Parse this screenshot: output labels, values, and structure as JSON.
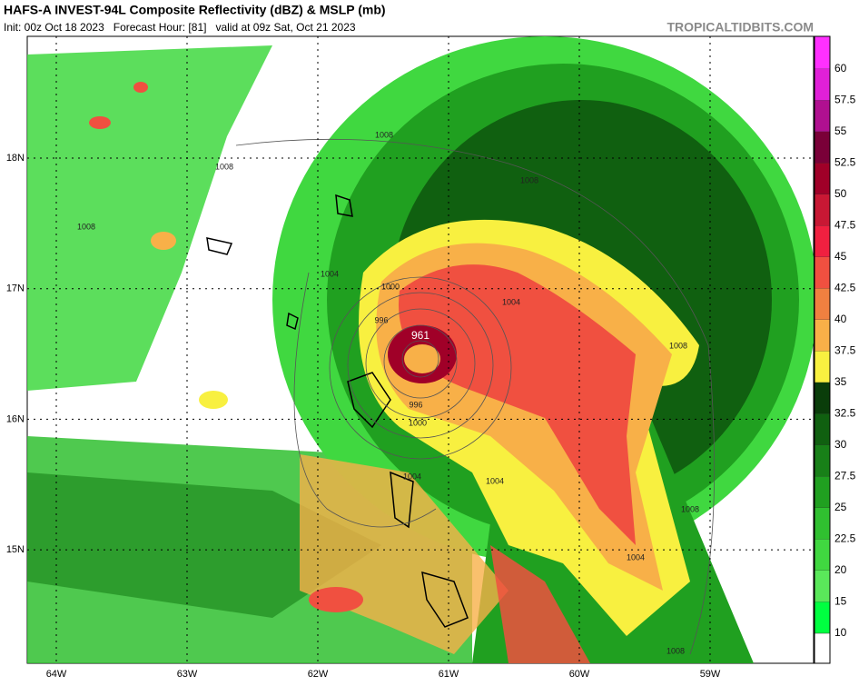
{
  "header": {
    "title": "HAFS-A INVEST-94L Composite Reflectivity (dBZ) & MSLP (mb)",
    "subtitle": "Init: 00z Oct 18 2023   Forecast Hour: [81]   valid at 09z Sat, Oct 21 2023",
    "source": "TROPICALTIDBITS.COM"
  },
  "map": {
    "lat_labels": [
      "18N",
      "17N",
      "16N",
      "15N"
    ],
    "lon_labels": [
      "64W",
      "63W",
      "62W",
      "61W",
      "60W",
      "59W"
    ],
    "isobar_labels": [
      "1008",
      "1008",
      "1008",
      "1008",
      "1008",
      "1008",
      "1008",
      "1004",
      "1004",
      "1004",
      "1004",
      "1004",
      "1000",
      "1000",
      "996",
      "996",
      "961"
    ]
  },
  "colorbar": {
    "ticks": [
      60,
      57.5,
      55,
      52.5,
      50,
      47.5,
      45,
      42.5,
      40,
      37.5,
      35,
      32.5,
      30,
      27.5,
      25,
      22.5,
      20,
      15,
      10
    ],
    "colors": [
      "#ff30ff",
      "#e020d8",
      "#b01090",
      "#7a0038",
      "#a00028",
      "#c81834",
      "#f02040",
      "#f05040",
      "#f08040",
      "#f8b048",
      "#f8f040",
      "#0a3d0a",
      "#106010",
      "#188018",
      "#20a020",
      "#30c030",
      "#40d840",
      "#5ae85a",
      "#00ff40"
    ]
  }
}
